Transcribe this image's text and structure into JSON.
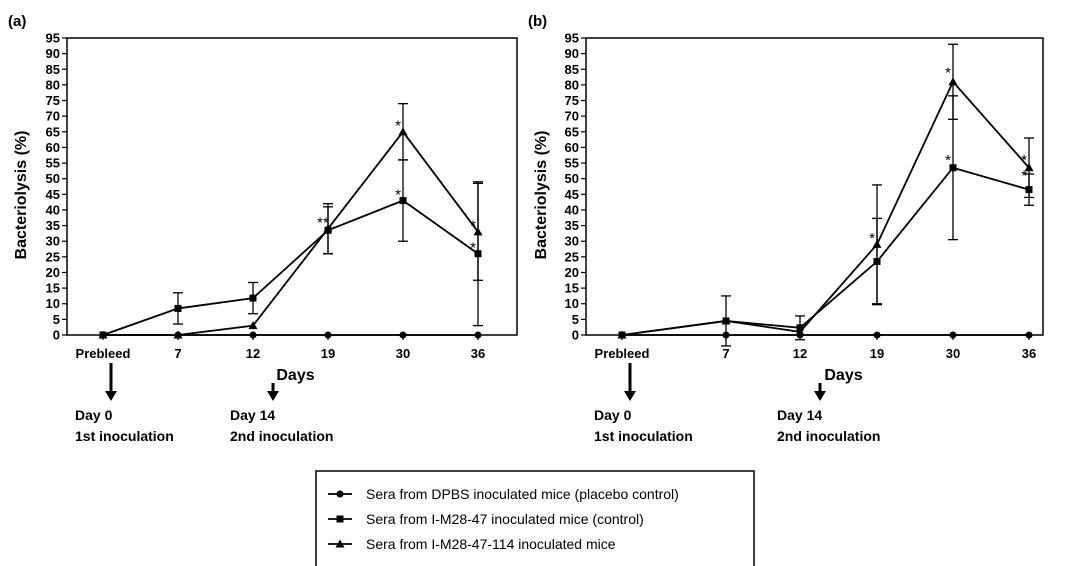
{
  "legend": {
    "entries": [
      "Sera from DPBS inoculated mice (placebo control)",
      "Sera from I-M28-47 inoculated mice (control)",
      "Sera from I-M28-47-114 inoculated mice"
    ]
  },
  "chart_data": [
    {
      "panel": "(a)",
      "type": "line",
      "xlabel": "Days",
      "ylabel": "Bacteriolysis (%)",
      "categories": [
        "Prebleed",
        "7",
        "12",
        "19",
        "30",
        "36"
      ],
      "ylim": [
        0,
        95
      ],
      "yticks": [
        0,
        5,
        10,
        15,
        20,
        25,
        30,
        35,
        40,
        45,
        50,
        55,
        60,
        65,
        70,
        75,
        80,
        85,
        90,
        95
      ],
      "grid": false,
      "legend_position": "bottom-center",
      "series": [
        {
          "name": "Sera from DPBS inoculated mice (placebo control)",
          "marker": "circle",
          "values": [
            0,
            0,
            0,
            0,
            0,
            0
          ],
          "errors": [
            0,
            0,
            0,
            0,
            0,
            0
          ]
        },
        {
          "name": "Sera from I-M28-47 inoculated mice (control)",
          "marker": "square",
          "values": [
            0,
            8.5,
            11.8,
            33.5,
            43,
            26
          ],
          "errors": [
            0,
            5,
            5,
            7.5,
            13,
            23
          ]
        },
        {
          "name": "Sera from I-M28-47-114 inoculated mice",
          "marker": "triangle",
          "values": [
            0,
            0,
            3,
            34,
            65,
            33
          ],
          "errors": [
            0,
            0,
            0,
            8,
            9,
            15.5
          ]
        }
      ],
      "significance": [
        {
          "category": "19",
          "text": "**",
          "y": 35
        },
        {
          "category": "30",
          "text": "*",
          "y": 66
        },
        {
          "category": "30",
          "text": "*",
          "y": 44
        },
        {
          "category": "36",
          "text": "*",
          "y": 34
        },
        {
          "category": "36",
          "text": "*",
          "y": 27
        }
      ],
      "annotations": [
        {
          "category": "Prebleed",
          "line1": "Day 0",
          "line2": "1st inoculation"
        },
        {
          "category": "12",
          "line1": "Day 14",
          "line2": "2nd inoculation"
        }
      ]
    },
    {
      "panel": "(b)",
      "type": "line",
      "xlabel": "Days",
      "ylabel": "Bacteriolysis (%)",
      "categories": [
        "Prebleed",
        "7",
        "12",
        "19",
        "30",
        "36"
      ],
      "ylim": [
        0,
        95
      ],
      "yticks": [
        0,
        5,
        10,
        15,
        20,
        25,
        30,
        35,
        40,
        45,
        50,
        55,
        60,
        65,
        70,
        75,
        80,
        85,
        90,
        95
      ],
      "grid": false,
      "legend_position": "bottom-center",
      "series": [
        {
          "name": "Sera from DPBS inoculated mice (placebo control)",
          "marker": "circle",
          "values": [
            0,
            0,
            0,
            0,
            0,
            0
          ],
          "errors": [
            0,
            0,
            0,
            0,
            0,
            0
          ]
        },
        {
          "name": "Sera from I-M28-47 inoculated mice (control)",
          "marker": "square",
          "values": [
            0,
            4.5,
            2.3,
            23.5,
            53.5,
            46.5
          ],
          "errors": [
            0,
            8,
            3.8,
            13.8,
            23,
            5
          ]
        },
        {
          "name": "Sera from I-M28-47-114 inoculated mice",
          "marker": "triangle",
          "values": [
            0,
            4.5,
            1,
            29,
            81,
            53.5
          ],
          "errors": [
            0,
            0,
            0,
            19,
            12,
            9.5
          ]
        }
      ],
      "significance": [
        {
          "category": "19",
          "text": "*",
          "y": 30
        },
        {
          "category": "30",
          "text": "*",
          "y": 83
        },
        {
          "category": "30",
          "text": "*",
          "y": 55
        },
        {
          "category": "36",
          "text": "*",
          "y": 55
        },
        {
          "category": "36",
          "text": "*",
          "y": 50
        }
      ],
      "annotations": [
        {
          "category": "Prebleed",
          "line1": "Day 0",
          "line2": "1st inoculation"
        },
        {
          "category": "12",
          "line1": "Day 14",
          "line2": "2nd inoculation"
        }
      ]
    }
  ]
}
